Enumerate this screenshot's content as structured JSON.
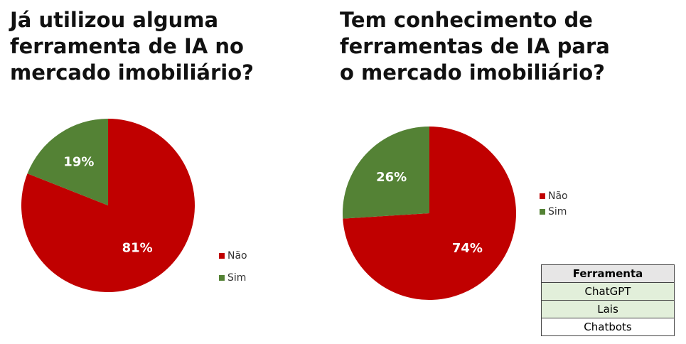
{
  "chart_data": [
    {
      "type": "pie",
      "title": "Já utilizou alguma ferramenta de IA no mercado imobiliário?",
      "categories": [
        "Não",
        "Sim"
      ],
      "values": [
        81,
        19
      ],
      "value_labels": [
        "81%",
        "19%"
      ],
      "colors": [
        "#c00000",
        "#548235"
      ],
      "legend": "right"
    },
    {
      "type": "pie",
      "title": "Tem conhecimento de ferramentas de IA para o mercado imobiliário?",
      "categories": [
        "Não",
        "Sim"
      ],
      "values": [
        74,
        26
      ],
      "value_labels": [
        "74%",
        "26%"
      ],
      "colors": [
        "#c00000",
        "#548235"
      ],
      "legend": "right"
    }
  ],
  "table": {
    "header": "Ferramenta",
    "rows": [
      "ChatGPT",
      "Lais",
      "Chatbots"
    ]
  }
}
